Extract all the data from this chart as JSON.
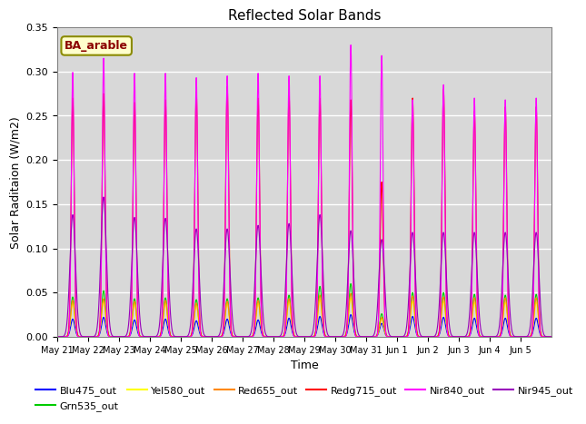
{
  "title": "Reflected Solar Bands",
  "xlabel": "Time",
  "ylabel": "Solar Raditaion (W/m2)",
  "annotation_text": "BA_arable",
  "annotation_color": "#8B0000",
  "annotation_bg": "#FFFFCC",
  "annotation_border": "#8B8B00",
  "ylim": [
    0,
    0.35
  ],
  "yticks": [
    0.0,
    0.05,
    0.1,
    0.15,
    0.2,
    0.25,
    0.3,
    0.35
  ],
  "bg_color": "#D8D8D8",
  "series_order": [
    "Blu475_out",
    "Grn535_out",
    "Yel580_out",
    "Red655_out",
    "Redg715_out",
    "Nir840_out",
    "Nir945_out"
  ],
  "colors": {
    "Blu475_out": "#0000FF",
    "Grn535_out": "#00CC00",
    "Yel580_out": "#FFFF00",
    "Red655_out": "#FF8800",
    "Redg715_out": "#FF0000",
    "Nir840_out": "#FF00FF",
    "Nir945_out": "#9900BB"
  },
  "peak_heights": {
    "Blu475_out": [
      0.02,
      0.022,
      0.019,
      0.02,
      0.018,
      0.02,
      0.019,
      0.021,
      0.023,
      0.025,
      0.015,
      0.023,
      0.022,
      0.021,
      0.021,
      0.021
    ],
    "Grn535_out": [
      0.045,
      0.052,
      0.043,
      0.044,
      0.042,
      0.043,
      0.044,
      0.047,
      0.057,
      0.06,
      0.026,
      0.05,
      0.05,
      0.048,
      0.047,
      0.048
    ],
    "Yel580_out": [
      0.038,
      0.04,
      0.038,
      0.038,
      0.036,
      0.038,
      0.038,
      0.04,
      0.042,
      0.044,
      0.02,
      0.04,
      0.04,
      0.039,
      0.039,
      0.039
    ],
    "Red655_out": [
      0.041,
      0.043,
      0.04,
      0.041,
      0.038,
      0.04,
      0.041,
      0.043,
      0.047,
      0.049,
      0.022,
      0.046,
      0.045,
      0.044,
      0.044,
      0.044
    ],
    "Redg715_out": [
      0.27,
      0.275,
      0.265,
      0.268,
      0.277,
      0.283,
      0.27,
      0.275,
      0.27,
      0.268,
      0.175,
      0.27,
      0.28,
      0.255,
      0.26,
      0.26
    ],
    "Nir840_out": [
      0.299,
      0.315,
      0.298,
      0.298,
      0.293,
      0.295,
      0.298,
      0.295,
      0.295,
      0.33,
      0.318,
      0.268,
      0.285,
      0.27,
      0.268,
      0.27
    ],
    "Nir945_out": [
      0.138,
      0.158,
      0.135,
      0.134,
      0.122,
      0.122,
      0.126,
      0.128,
      0.138,
      0.12,
      0.11,
      0.118,
      0.118,
      0.118,
      0.118,
      0.118
    ]
  },
  "bell_widths": {
    "Blu475_out": 0.065,
    "Grn535_out": 0.065,
    "Yel580_out": 0.065,
    "Red655_out": 0.065,
    "Redg715_out": 0.05,
    "Nir840_out": 0.045,
    "Nir945_out": 0.09
  },
  "num_days": 16,
  "points_per_day": 240,
  "days_labels": [
    "May 21",
    "May 22",
    "May 23",
    "May 24",
    "May 25",
    "May 26",
    "May 27",
    "May 28",
    "May 29",
    "May 30",
    "May 31",
    "Jun 1",
    "Jun 2",
    "Jun 3",
    "Jun 4",
    "Jun 5"
  ]
}
